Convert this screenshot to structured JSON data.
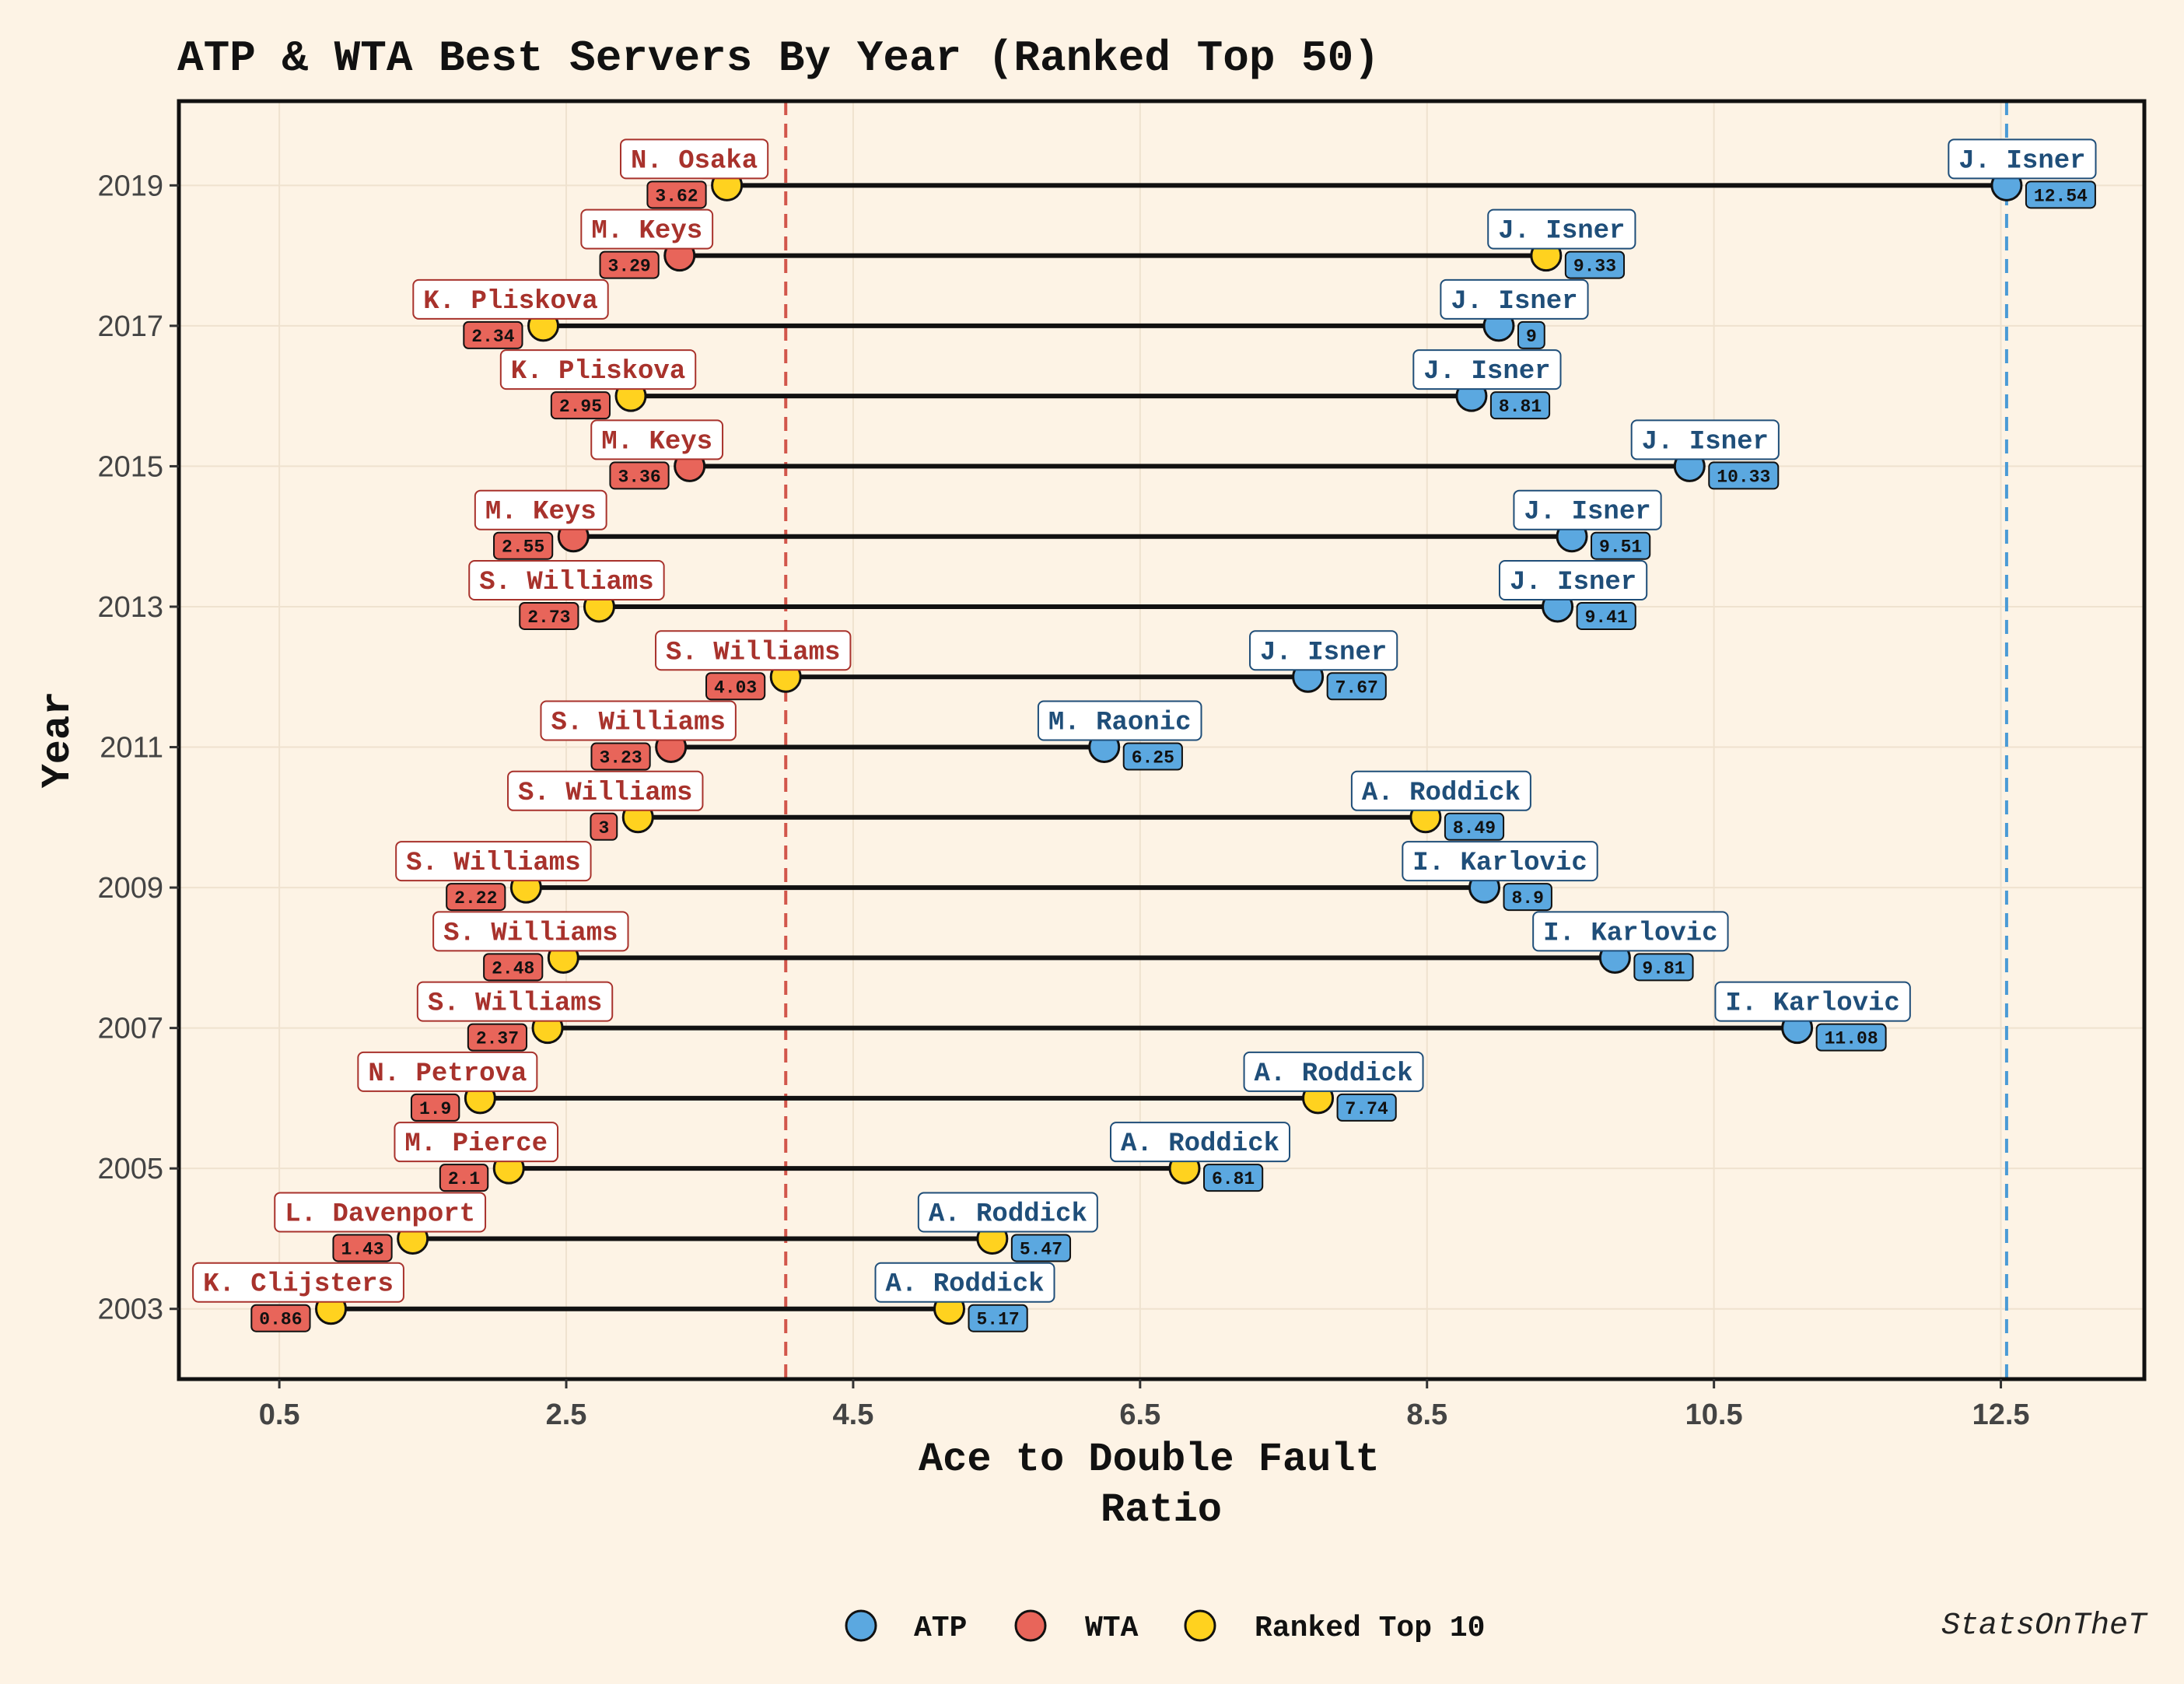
{
  "chart_data": {
    "type": "dumbbell",
    "title": "ATP & WTA Best Servers By Year (Ranked Top 50)",
    "xlabel": "Ace to Double Fault\nRatio",
    "ylabel": "Year",
    "caption": "StatsOnTheT",
    "xlim": [
      -0.2,
      13.5
    ],
    "ylim": [
      2002.0,
      2020.2
    ],
    "xticks": [
      "0.5",
      "2.5",
      "4.5",
      "6.5",
      "8.5",
      "10.5",
      "12.5"
    ],
    "yticks": [
      "2003",
      "2005",
      "2007",
      "2009",
      "2011",
      "2013",
      "2015",
      "2017",
      "2019"
    ],
    "reference_lines": [
      {
        "tour": "WTA",
        "x": 4.03,
        "color": "#D2564B"
      },
      {
        "tour": "ATP",
        "x": 12.54,
        "color": "#4A9BD6"
      }
    ],
    "legend": {
      "position": "bottom",
      "items": [
        {
          "label": "ATP",
          "color": "#5BA8E0"
        },
        {
          "label": "WTA",
          "color": "#E8655A"
        },
        {
          "label": "Ranked Top 10",
          "color": "#FFD21F"
        }
      ]
    },
    "colors": {
      "atp": "#5BA8E0",
      "wta": "#E8655A",
      "top10": "#FFD21F",
      "atp_text": "#1F4E79",
      "wta_text": "#A8322C",
      "background": "#FDF3E5"
    },
    "rows": [
      {
        "year": 2019,
        "wta": {
          "name": "N. Osaka",
          "value": "3.62",
          "top10": true
        },
        "atp": {
          "name": "J. Isner",
          "value": "12.54",
          "top10": false
        }
      },
      {
        "year": 2018,
        "wta": {
          "name": "M. Keys",
          "value": "3.29",
          "top10": false
        },
        "atp": {
          "name": "J. Isner",
          "value": "9.33",
          "top10": true
        }
      },
      {
        "year": 2017,
        "wta": {
          "name": "K. Pliskova",
          "value": "2.34",
          "top10": true
        },
        "atp": {
          "name": "J. Isner",
          "value": "9",
          "top10": false
        }
      },
      {
        "year": 2016,
        "wta": {
          "name": "K. Pliskova",
          "value": "2.95",
          "top10": true
        },
        "atp": {
          "name": "J. Isner",
          "value": "8.81",
          "top10": false
        }
      },
      {
        "year": 2015,
        "wta": {
          "name": "M. Keys",
          "value": "3.36",
          "top10": false
        },
        "atp": {
          "name": "J. Isner",
          "value": "10.33",
          "top10": false
        }
      },
      {
        "year": 2014,
        "wta": {
          "name": "M. Keys",
          "value": "2.55",
          "top10": false
        },
        "atp": {
          "name": "J. Isner",
          "value": "9.51",
          "top10": false
        }
      },
      {
        "year": 2013,
        "wta": {
          "name": "S. Williams",
          "value": "2.73",
          "top10": true
        },
        "atp": {
          "name": "J. Isner",
          "value": "9.41",
          "top10": false
        }
      },
      {
        "year": 2012,
        "wta": {
          "name": "S. Williams",
          "value": "4.03",
          "top10": true
        },
        "atp": {
          "name": "J. Isner",
          "value": "7.67",
          "top10": false
        }
      },
      {
        "year": 2011,
        "wta": {
          "name": "S. Williams",
          "value": "3.23",
          "top10": false
        },
        "atp": {
          "name": "M. Raonic",
          "value": "6.25",
          "top10": false
        }
      },
      {
        "year": 2010,
        "wta": {
          "name": "S. Williams",
          "value": "3",
          "top10": true
        },
        "atp": {
          "name": "A. Roddick",
          "value": "8.49",
          "top10": true
        }
      },
      {
        "year": 2009,
        "wta": {
          "name": "S. Williams",
          "value": "2.22",
          "top10": true
        },
        "atp": {
          "name": "I. Karlovic",
          "value": "8.9",
          "top10": false
        }
      },
      {
        "year": 2008,
        "wta": {
          "name": "S. Williams",
          "value": "2.48",
          "top10": true
        },
        "atp": {
          "name": "I. Karlovic",
          "value": "9.81",
          "top10": false
        }
      },
      {
        "year": 2007,
        "wta": {
          "name": "S. Williams",
          "value": "2.37",
          "top10": true
        },
        "atp": {
          "name": "I. Karlovic",
          "value": "11.08",
          "top10": false
        }
      },
      {
        "year": 2006,
        "wta": {
          "name": "N. Petrova",
          "value": "1.9",
          "top10": true
        },
        "atp": {
          "name": "A. Roddick",
          "value": "7.74",
          "top10": true
        }
      },
      {
        "year": 2005,
        "wta": {
          "name": "M. Pierce",
          "value": "2.1",
          "top10": true
        },
        "atp": {
          "name": "A. Roddick",
          "value": "6.81",
          "top10": true
        }
      },
      {
        "year": 2004,
        "wta": {
          "name": "L. Davenport",
          "value": "1.43",
          "top10": true
        },
        "atp": {
          "name": "A. Roddick",
          "value": "5.47",
          "top10": true
        }
      },
      {
        "year": 2003,
        "wta": {
          "name": "K. Clijsters",
          "value": "0.86",
          "top10": true
        },
        "atp": {
          "name": "A. Roddick",
          "value": "5.17",
          "top10": true
        }
      }
    ]
  }
}
